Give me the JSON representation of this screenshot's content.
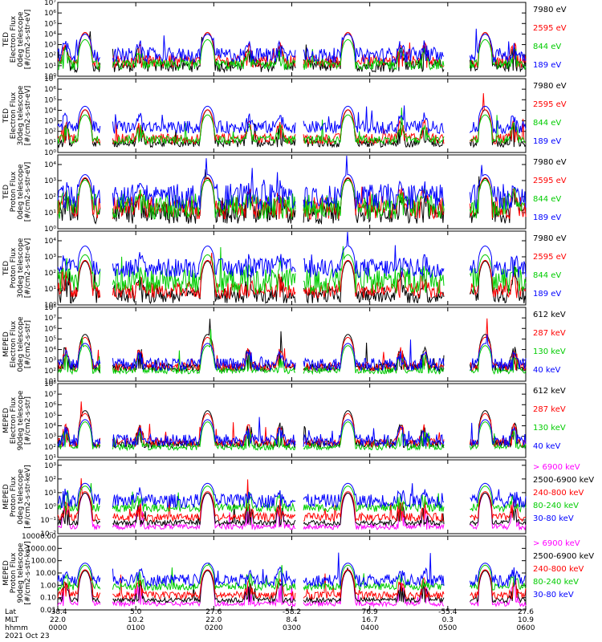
{
  "colors": {
    "black": "#000000",
    "red": "#ff0000",
    "green": "#00cc00",
    "blue": "#0000ff",
    "magenta": "#ff00ff",
    "axis": "#000000"
  },
  "chart_data": [
    {
      "type": "line",
      "ylabel": [
        "TED",
        "Electron Flux",
        "0deg telescope",
        "[#/cm2-s-str-eV]"
      ],
      "yticks": [
        "10⁰",
        "10¹",
        "10²",
        "10³",
        "10⁴",
        "10⁵",
        "10⁶",
        "10⁷"
      ],
      "ylim": [
        0,
        7
      ],
      "series": [
        {
          "name": "7980 eV",
          "color": "#000000",
          "level": 1.0,
          "noise": 0.6
        },
        {
          "name": "2595 eV",
          "color": "#ff0000",
          "level": 1.4,
          "noise": 0.6
        },
        {
          "name": "844 eV",
          "color": "#00cc00",
          "level": 1.1,
          "noise": 0.5
        },
        {
          "name": "189 eV",
          "color": "#0000ff",
          "level": 2.0,
          "noise": 0.7
        }
      ]
    },
    {
      "type": "line",
      "ylabel": [
        "TED",
        "Electron Flux",
        "30deg telescope",
        "[#/cm2-s-str-eV]"
      ],
      "yticks": [
        "10⁰",
        "10¹",
        "10²",
        "10³",
        "10⁴",
        "10⁵",
        "10⁶",
        "10⁷"
      ],
      "ylim": [
        0,
        7
      ],
      "series": [
        {
          "name": "7980 eV",
          "color": "#000000",
          "level": 0.9,
          "noise": 0.4
        },
        {
          "name": "2595 eV",
          "color": "#ff0000",
          "level": 1.3,
          "noise": 0.5
        },
        {
          "name": "844 eV",
          "color": "#00cc00",
          "level": 1.2,
          "noise": 0.4
        },
        {
          "name": "189 eV",
          "color": "#0000ff",
          "level": 2.4,
          "noise": 0.6
        }
      ]
    },
    {
      "type": "line",
      "ylabel": [
        "TED",
        "Proton Flux",
        "0deg telescope",
        "[#/cm2-s-str-eV]"
      ],
      "yticks": [
        "10⁰",
        "10¹",
        "10²",
        "10³",
        "10⁴"
      ],
      "ylim": [
        0,
        4.6
      ],
      "series": [
        {
          "name": "7980 eV",
          "color": "#000000",
          "level": 1.0,
          "noise": 0.7
        },
        {
          "name": "2595 eV",
          "color": "#ff0000",
          "level": 1.3,
          "noise": 0.7
        },
        {
          "name": "844 eV",
          "color": "#00cc00",
          "level": 1.4,
          "noise": 0.8
        },
        {
          "name": "189 eV",
          "color": "#0000ff",
          "level": 2.0,
          "noise": 0.8
        }
      ]
    },
    {
      "type": "line",
      "ylabel": [
        "TED",
        "Proton Flux",
        "30deg telescope",
        "[#/cm2-s-str-eV]"
      ],
      "yticks": [
        "10⁰",
        "10¹",
        "10²",
        "10³",
        "10⁴"
      ],
      "ylim": [
        0,
        4.6
      ],
      "series": [
        {
          "name": "7980 eV",
          "color": "#000000",
          "level": 0.6,
          "noise": 0.5
        },
        {
          "name": "2595 eV",
          "color": "#ff0000",
          "level": 0.9,
          "noise": 0.5
        },
        {
          "name": "844 eV",
          "color": "#00cc00",
          "level": 1.5,
          "noise": 0.8
        },
        {
          "name": "189 eV",
          "color": "#0000ff",
          "level": 2.3,
          "noise": 0.6
        }
      ]
    },
    {
      "type": "line",
      "ylabel": [
        "MEPED",
        "Electron Flux",
        "0deg telescope",
        "[#/cm2-s-str]"
      ],
      "yticks": [
        "10¹",
        "10²",
        "10³",
        "10⁴",
        "10⁵",
        "10⁶",
        "10⁷",
        "10⁸"
      ],
      "ylim": [
        1,
        8
      ],
      "series": [
        {
          "name": "612 keV",
          "color": "#000000",
          "level": 2.3,
          "noise": 0.4
        },
        {
          "name": "287 keV",
          "color": "#ff0000",
          "level": 2.4,
          "noise": 0.4
        },
        {
          "name": "130 keV",
          "color": "#00cc00",
          "level": 2.0,
          "noise": 0.3
        },
        {
          "name": "40 keV",
          "color": "#0000ff",
          "level": 2.6,
          "noise": 0.6
        }
      ]
    },
    {
      "type": "line",
      "ylabel": [
        "MEPED",
        "Electron Flux",
        "90deg telescope",
        "[#/cm2-s-str]"
      ],
      "yticks": [
        "10¹",
        "10²",
        "10³",
        "10⁴",
        "10⁵",
        "10⁶",
        "10⁷",
        "10⁸"
      ],
      "ylim": [
        1,
        8
      ],
      "series": [
        {
          "name": "612 keV",
          "color": "#000000",
          "level": 2.3,
          "noise": 0.4
        },
        {
          "name": "287 keV",
          "color": "#ff0000",
          "level": 2.4,
          "noise": 0.4
        },
        {
          "name": "130 keV",
          "color": "#00cc00",
          "level": 2.0,
          "noise": 0.3
        },
        {
          "name": "40 keV",
          "color": "#0000ff",
          "level": 2.6,
          "noise": 0.6
        }
      ]
    },
    {
      "type": "line",
      "ylabel": [
        "MEPED",
        "Proton Flux",
        "0deg telescope",
        "[#/cm2-s-str-keV]"
      ],
      "yticks": [
        "10⁻²",
        "10⁻¹",
        "10⁰",
        "10¹",
        "10²",
        "10³"
      ],
      "ylim": [
        -2,
        3.4
      ],
      "series": [
        {
          "name": "> 6900 keV",
          "color": "#ff00ff",
          "level": -1.5,
          "noise": 0.2
        },
        {
          "name": "2500-6900 keV",
          "color": "#000000",
          "level": -1.2,
          "noise": 0.2
        },
        {
          "name": "240-800 keV",
          "color": "#ff0000",
          "level": -0.8,
          "noise": 0.3
        },
        {
          "name": "80-240 keV",
          "color": "#00cc00",
          "level": -0.1,
          "noise": 0.3
        },
        {
          "name": "30-80 keV",
          "color": "#0000ff",
          "level": 0.4,
          "noise": 0.5
        }
      ]
    },
    {
      "type": "line",
      "ylabel": [
        "MEPED",
        "Proton Flux",
        "90deg telescope",
        "[#/cm2-s-str-keV]"
      ],
      "yticks": [
        "0.01",
        "0.10",
        "1.00",
        "10.00",
        "100.00",
        "1000.00",
        "10000.00"
      ],
      "ylim": [
        -2,
        4
      ],
      "series": [
        {
          "name": "> 6900 keV",
          "color": "#ff00ff",
          "level": -1.5,
          "noise": 0.2
        },
        {
          "name": "2500-6900 keV",
          "color": "#000000",
          "level": -1.2,
          "noise": 0.2
        },
        {
          "name": "240-800 keV",
          "color": "#ff0000",
          "level": -0.8,
          "noise": 0.3
        },
        {
          "name": "80-240 keV",
          "color": "#00cc00",
          "level": -0.1,
          "noise": 0.3
        },
        {
          "name": "30-80 keV",
          "color": "#0000ff",
          "level": 0.4,
          "noise": 0.5
        }
      ]
    }
  ],
  "xaxis": {
    "row_labels": [
      "Lat",
      "MLT",
      "hhmm"
    ],
    "date": "2021 Oct 23",
    "ticks": [
      {
        "t": 0,
        "lat": "-38.4",
        "mlt": "22.0",
        "hhmm": "0000"
      },
      {
        "t": 1,
        "lat": "5.0",
        "mlt": "10.2",
        "hhmm": "0100"
      },
      {
        "t": 2,
        "lat": "27.6",
        "mlt": "22.0",
        "hhmm": "0200"
      },
      {
        "t": 3,
        "lat": "-58.2",
        "mlt": "8.4",
        "hhmm": "0300"
      },
      {
        "t": 4,
        "lat": "76.9",
        "mlt": "16.7",
        "hhmm": "0400"
      },
      {
        "t": 5,
        "lat": "-55.4",
        "mlt": "0.3",
        "hhmm": "0500"
      },
      {
        "t": 6,
        "lat": "27.6",
        "mlt": "10.9",
        "hhmm": "0600"
      }
    ],
    "range": [
      0,
      6
    ]
  },
  "passes": [
    0.35,
    1.92,
    3.72,
    5.48
  ],
  "minor_passes": [
    0.1,
    1.05,
    2.45,
    2.85,
    4.4,
    4.7,
    5.85
  ]
}
